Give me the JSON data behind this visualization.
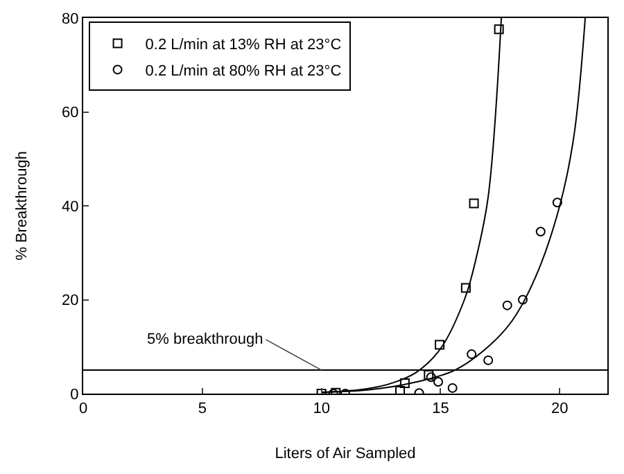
{
  "chart_data": {
    "type": "scatter",
    "xlabel": "Liters of Air Sampled",
    "ylabel": "% Breakthrough",
    "xlim": [
      0,
      22
    ],
    "ylim": [
      0,
      80
    ],
    "xticks": [
      0,
      5,
      10,
      15,
      20
    ],
    "yticks": [
      0,
      20,
      40,
      60,
      80
    ],
    "grid": false,
    "legend": "top left",
    "series": [
      {
        "name": "0.2 L/min at 13% RH at 23°C",
        "color": "#000000",
        "marker": "square",
        "x": [
          10.0,
          10.6,
          11.9,
          13.3,
          13.5,
          14.5,
          14.96,
          16.06,
          16.4,
          17.45
        ],
        "values": [
          0,
          0.2,
          null,
          0.6,
          2.2,
          4.0,
          10.4,
          22.5,
          40.5,
          77.6
        ]
      },
      {
        "name": "0.2 L/min at 80% RH at 23°C",
        "color": "#000000",
        "marker": "circle",
        "x": [
          10.5,
          11.0,
          12.0,
          13.5,
          14.1,
          14.6,
          14.9,
          15.5,
          16.3,
          17.0,
          17.8,
          18.45,
          19.2,
          19.9
        ],
        "values": [
          0,
          0,
          null,
          null,
          0.1,
          3.5,
          2.5,
          1.2,
          8.4,
          7.1,
          18.8,
          20,
          34.5,
          40.7
        ]
      },
      {
        "type": "line",
        "color": "#000000",
        "x": [
          10,
          12,
          13,
          14,
          15,
          16,
          16.5,
          17,
          17.55
        ],
        "values": [
          0.2,
          1.1,
          2.3,
          4.6,
          9.6,
          20,
          29,
          42,
          80
        ]
      },
      {
        "type": "line",
        "color": "#000000",
        "x": [
          10,
          12,
          14,
          15.6,
          17,
          18,
          19,
          20,
          20.6,
          21.07
        ],
        "values": [
          0.3,
          0.8,
          2.5,
          5,
          10,
          15.5,
          25,
          40,
          55,
          80
        ]
      }
    ],
    "ref_lines": [
      {
        "axis": "y",
        "value": 5,
        "color": "#000000"
      }
    ],
    "annotations": [
      {
        "text": "5% breakthrough",
        "x": 10,
        "y": 5
      }
    ]
  }
}
